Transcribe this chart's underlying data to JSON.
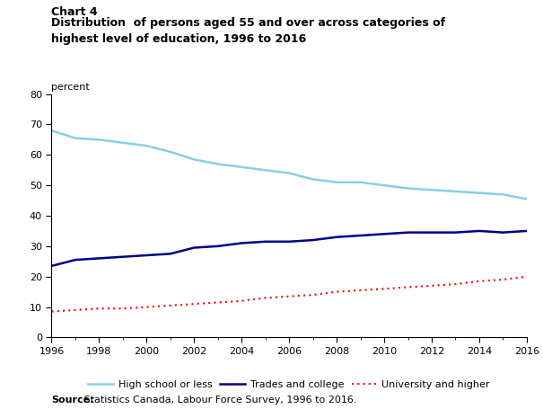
{
  "title_line1": "Chart 4",
  "title_line2": "Distribution  of persons aged 55 and over across categories of\nhighest level of education, 1996 to 2016",
  "ylabel": "percent",
  "source_bold": "Source:",
  "source_rest": " Statistics Canada, Labour Force Survey, 1996 to 2016.",
  "years": [
    1996,
    1997,
    1998,
    1999,
    2000,
    2001,
    2002,
    2003,
    2004,
    2005,
    2006,
    2007,
    2008,
    2009,
    2010,
    2011,
    2012,
    2013,
    2014,
    2015,
    2016
  ],
  "high_school": [
    68,
    65.5,
    65,
    64,
    63,
    61,
    58.5,
    57,
    56,
    55,
    54,
    52,
    51,
    51,
    50,
    49,
    48.5,
    48,
    47.5,
    47,
    45.5
  ],
  "trades_college": [
    23.5,
    25.5,
    26,
    26.5,
    27,
    27.5,
    29.5,
    30,
    31,
    31.5,
    31.5,
    32,
    33,
    33.5,
    34,
    34.5,
    34.5,
    34.5,
    35,
    34.5,
    35
  ],
  "university": [
    8.5,
    9,
    9.5,
    9.5,
    10,
    10.5,
    11,
    11.5,
    12,
    13,
    13.5,
    14,
    15,
    15.5,
    16,
    16.5,
    17,
    17.5,
    18.5,
    19,
    20
  ],
  "color_high_school": "#87CEEB",
  "color_trades": "#00008B",
  "color_university": "#FF0000",
  "ylim": [
    0,
    80
  ],
  "yticks": [
    0,
    10,
    20,
    30,
    40,
    50,
    60,
    70,
    80
  ],
  "xticks": [
    1996,
    1998,
    2000,
    2002,
    2004,
    2006,
    2008,
    2010,
    2012,
    2014,
    2016
  ],
  "legend_labels": [
    "High school or less",
    "Trades and college",
    "University and higher"
  ],
  "bg_color": "#ffffff"
}
